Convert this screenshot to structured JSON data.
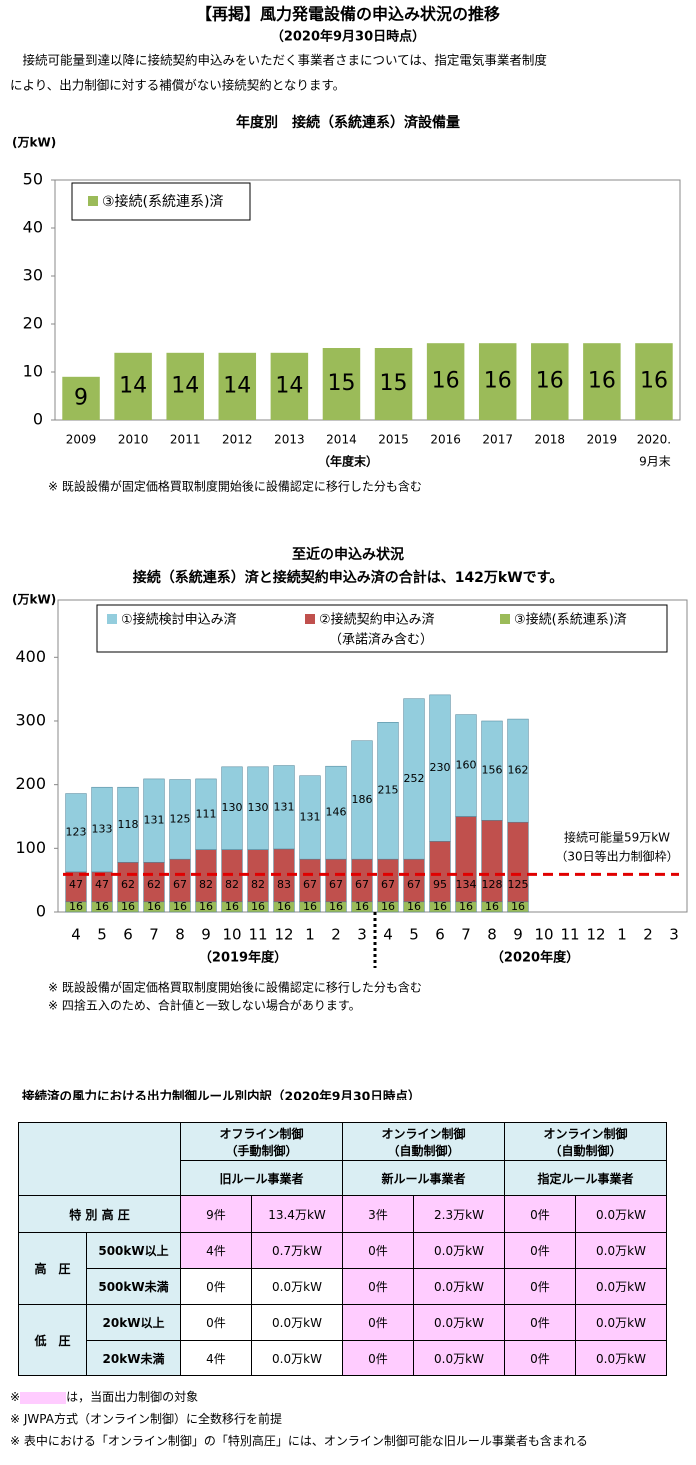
{
  "header": {
    "title": "【再掲】風力発電設備の申込み状況の推移",
    "subtitle": "（2020年9月30日時点）",
    "intro": [
      "　接続可能量到達以降に接続契約申込みをいただく事業者さまについては、指定電気事業者制度",
      "により、出力制御に対する補償がない接続契約となります。"
    ]
  },
  "chart_data": [
    {
      "type": "bar",
      "title": "年度別　接続（系統連系）済設備量",
      "y_unit": "(万kW)",
      "x_label": "（年度末）",
      "last_category_sub": "9月末",
      "categories": [
        "2009",
        "2010",
        "2011",
        "2012",
        "2013",
        "2014",
        "2015",
        "2016",
        "2017",
        "2018",
        "2019",
        "2020."
      ],
      "series": [
        {
          "name": "③接続(系統連系)済",
          "color": "#9bbb59",
          "values": [
            9,
            14,
            14,
            14,
            14,
            15,
            15,
            16,
            16,
            16,
            16,
            16
          ]
        }
      ],
      "ylim": [
        0,
        50
      ],
      "yticks": [
        0,
        10,
        20,
        30,
        40,
        50
      ],
      "grid": false,
      "note": "※ 既設設備が固定価格買取制度開始後に設備認定に移行した分も含む"
    },
    {
      "type": "stacked_bar",
      "title": [
        "至近の申込み状況",
        "接続（系統連系）済と接続契約申込み済の合計は、142万kWです。"
      ],
      "y_unit": "(万kW)",
      "categories": [
        "4",
        "5",
        "6",
        "7",
        "8",
        "9",
        "10",
        "11",
        "12",
        "1",
        "2",
        "3",
        "4",
        "5",
        "6",
        "7",
        "8",
        "9",
        "10",
        "11",
        "12",
        "1",
        "2",
        "3"
      ],
      "groups": [
        "（2019年度）",
        "（2020年度）"
      ],
      "series": [
        {
          "name": "①接続検討申込み済",
          "color": "#93cddd",
          "values": [
            123,
            133,
            118,
            131,
            125,
            111,
            130,
            130,
            131,
            131,
            146,
            186,
            215,
            252,
            230,
            160,
            156,
            162,
            null,
            null,
            null,
            null,
            null,
            null
          ]
        },
        {
          "name": "②接続契約申込み済",
          "color": "#c0504d",
          "subtext": "（承諾済み含む）",
          "values": [
            47,
            47,
            62,
            62,
            67,
            82,
            82,
            82,
            83,
            67,
            67,
            67,
            67,
            67,
            95,
            134,
            128,
            125,
            null,
            null,
            null,
            null,
            null,
            null
          ]
        },
        {
          "name": "③接続(系統連系)済",
          "color": "#9bbb59",
          "values": [
            16,
            16,
            16,
            16,
            16,
            16,
            16,
            16,
            16,
            16,
            16,
            16,
            16,
            16,
            16,
            16,
            16,
            16,
            null,
            null,
            null,
            null,
            null,
            null
          ]
        }
      ],
      "reference_line": {
        "value": 59,
        "color": "#e00000",
        "label": [
          "接続可能量59万kW",
          "（30日等出力制御枠）"
        ]
      },
      "ylim": [
        0,
        490
      ],
      "yticks": [
        0,
        100,
        200,
        300,
        400
      ],
      "grid": false,
      "notes": [
        "※ 既設設備が固定価格買取制度開始後に設備認定に移行した分も含む",
        "※ 四捨五入のため、合計値と一致しない場合があります。"
      ]
    }
  ],
  "table": {
    "title": "接続済の風力における出力制御ルール別内訳（2020年9月30日時点）",
    "groups": [
      {
        "line1": "オフライン制御",
        "line2": "（手動制御）",
        "rule": "旧ルール事業者"
      },
      {
        "line1": "オンライン制御",
        "line2": "（自動制御）",
        "rule": "新ルール事業者"
      },
      {
        "line1": "オンライン制御",
        "line2": "（自動制御）",
        "rule": "指定ルール事業者"
      }
    ],
    "row_groups": [
      "高　圧",
      "低　圧"
    ],
    "rows": [
      {
        "label": "特 別 高 圧",
        "cells": [
          "9件",
          "13.4万kW",
          "3件",
          "2.3万kW",
          "0件",
          "0.0万kW"
        ]
      },
      {
        "label": "500kW以上",
        "cells": [
          "4件",
          "0.7万kW",
          "0件",
          "0.0万kW",
          "0件",
          "0.0万kW"
        ]
      },
      {
        "label": "500kW未満",
        "cells": [
          "0件",
          "0.0万kW",
          "0件",
          "0.0万kW",
          "0件",
          "0.0万kW"
        ]
      },
      {
        "label": "20kW以上",
        "cells": [
          "0件",
          "0.0万kW",
          "0件",
          "0.0万kW",
          "0件",
          "0.0万kW"
        ]
      },
      {
        "label": "20kW未満",
        "cells": [
          "4件",
          "0.0万kW",
          "0件",
          "0.0万kW",
          "0件",
          "0.0万kW"
        ]
      }
    ],
    "footnotes": {
      "mark": "※",
      "highlight_note": "は，当面出力制御の対象",
      "others": [
        "※ JWPA方式（オンライン制御）に全数移行を前提",
        "※ 表中における「オンライン制御」の「特別高圧」には、オンライン制御可能な旧ルール事業者も含まれる"
      ]
    }
  }
}
